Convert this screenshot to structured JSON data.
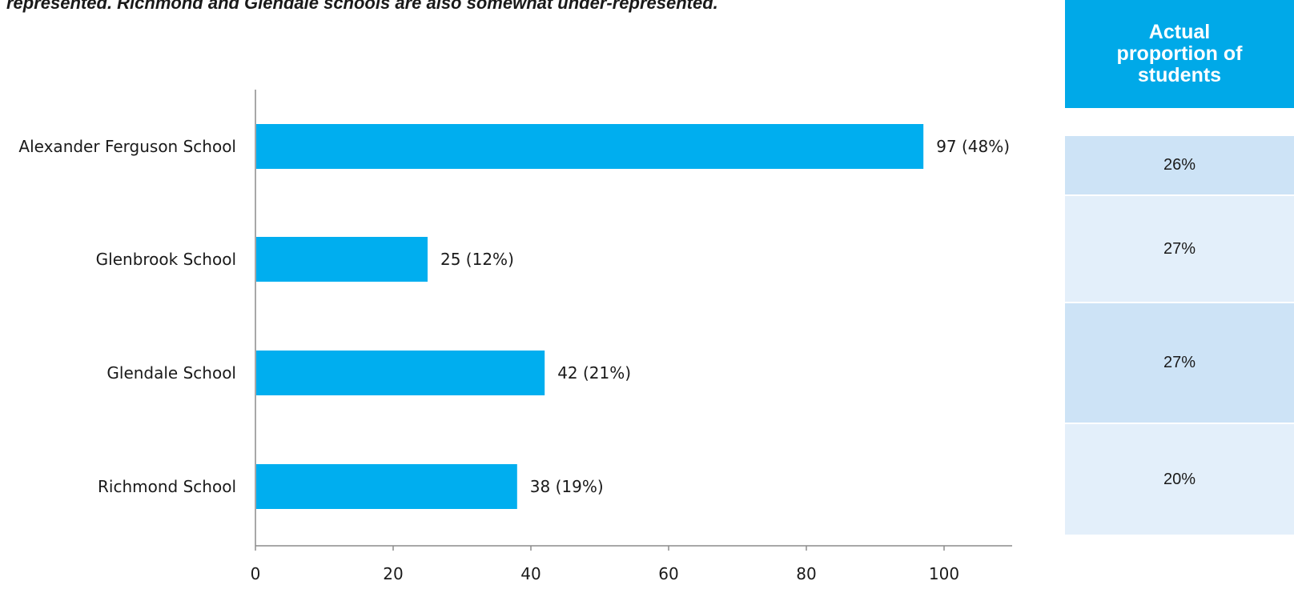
{
  "caption": "represented. Richmond and Glendale schools are also somewhat under-represented.",
  "chart_data": {
    "type": "bar",
    "orientation": "horizontal",
    "categories": [
      "Alexander Ferguson School",
      "Glenbrook School",
      "Glendale School",
      "Richmond School"
    ],
    "values": [
      97,
      25,
      42,
      38
    ],
    "data_labels": [
      "97 (48%)",
      "25 (12%)",
      "42 (21%)",
      "38 (19%)"
    ],
    "x_ticks": [
      "0",
      "20",
      "40",
      "60",
      "80",
      "100"
    ],
    "xlim": [
      0,
      110
    ],
    "grid": false,
    "colors": {
      "bar": "#00aeef",
      "axis": "#8c8c8c"
    }
  },
  "side_table": {
    "header": "Actual proportion of students",
    "rows": [
      "26%",
      "27%",
      "27%",
      "20%"
    ],
    "colors": {
      "header_bg": "#00a9e8",
      "row_dark": "#cde3f6",
      "row_light": "#e3effa"
    }
  }
}
